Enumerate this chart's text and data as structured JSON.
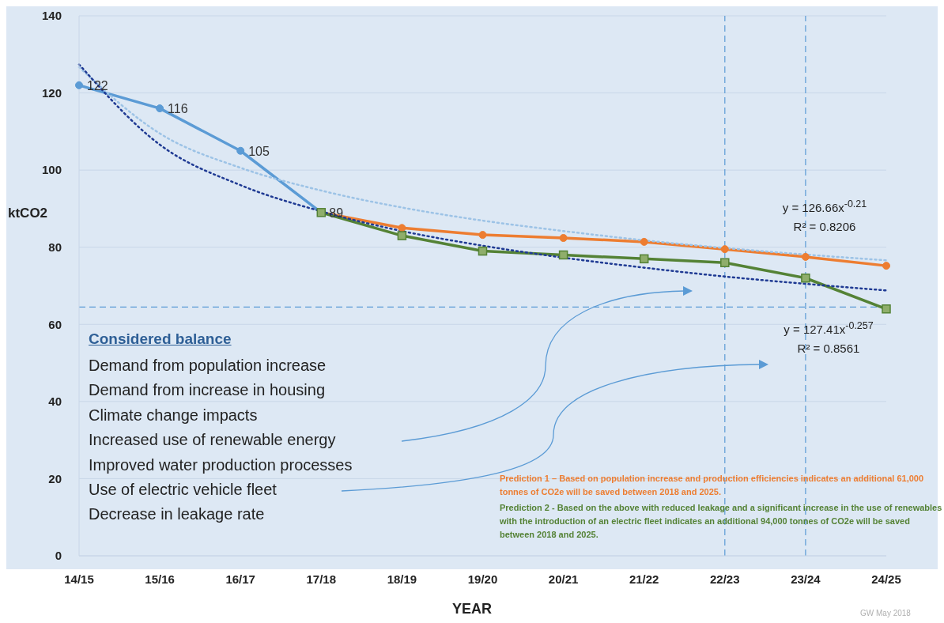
{
  "chart_data": {
    "type": "line",
    "xlabel": "YEAR",
    "ylabel": "ktCO2",
    "categories": [
      "14/15",
      "15/16",
      "16/17",
      "17/18",
      "18/19",
      "19/20",
      "20/21",
      "21/22",
      "22/23",
      "23/24",
      "24/25"
    ],
    "series": [
      {
        "color": "#5b9bd5",
        "marker": "circle",
        "line_style": "solid",
        "values": [
          122,
          116,
          105,
          89,
          null,
          null,
          null,
          null,
          null,
          null,
          null
        ],
        "value_labels": [
          "122",
          "116",
          "105",
          "89",
          null,
          null,
          null,
          null,
          null,
          null,
          null
        ]
      },
      {
        "color": "#ed7d31",
        "marker": "circle",
        "line_style": "solid",
        "values": [
          null,
          null,
          null,
          89,
          85,
          83.2,
          82.4,
          81.4,
          79.5,
          77.5,
          75.2
        ]
      },
      {
        "color": "#548235",
        "marker": "square",
        "line_style": "solid",
        "values": [
          null,
          null,
          null,
          89,
          83,
          79,
          78,
          77,
          76,
          72,
          64
        ]
      },
      {
        "color": "#9dc3e6",
        "marker": "none",
        "line_style": "dotted",
        "values": [
          126.7,
          109.5,
          100.6,
          94.7,
          90.3,
          86.9,
          84.2,
          81.8,
          79.8,
          78.1,
          76.6
        ]
      },
      {
        "color": "#1f3a93",
        "marker": "none",
        "line_style": "dotted",
        "values": [
          127.4,
          106.6,
          96.1,
          89.3,
          84.2,
          80.4,
          77.3,
          74.7,
          72.4,
          70.5,
          68.8
        ]
      }
    ],
    "ylim": [
      0,
      140
    ],
    "yticks": [
      0,
      20,
      40,
      60,
      80,
      100,
      120,
      140
    ],
    "grid": "y",
    "ref_lines": [
      {
        "axis": "y",
        "value": 64.5,
        "color": "#5b9bd5",
        "line_style": "dashed"
      },
      {
        "axis": "x",
        "value": "22/23",
        "color": "#5b9bd5",
        "line_style": "dashed"
      },
      {
        "axis": "x",
        "value": "23/24",
        "color": "#5b9bd5",
        "line_style": "dashed"
      }
    ],
    "annotations": [
      "Considered balance",
      "Demand from population increase",
      "Demand from increase in housing",
      "Climate change impacts",
      "Increased use of renewable energy",
      "Improved water production processes",
      "Use of electric vehicle fleet",
      "Decrease in leakage rate",
      "y = 126.66x$^{-0.21}$",
      "R² = 0.8206",
      "y = 127.41x$^{-0.257}$",
      "R² = 0.8561",
      "Prediction 1 –  Based on population increase and production efficiencies indicates an additional 61,000 tonnes of CO2e will be saved between 2018 and 2025.",
      "Prediction 2 - Based on the above with reduced leakage and a significant increase in the use of renewables with the introduction of  an electric fleet indicates an additional 94,000 tonnes of CO2e will be saved between 2018 and 2025.",
      "GW May 2018"
    ]
  }
}
